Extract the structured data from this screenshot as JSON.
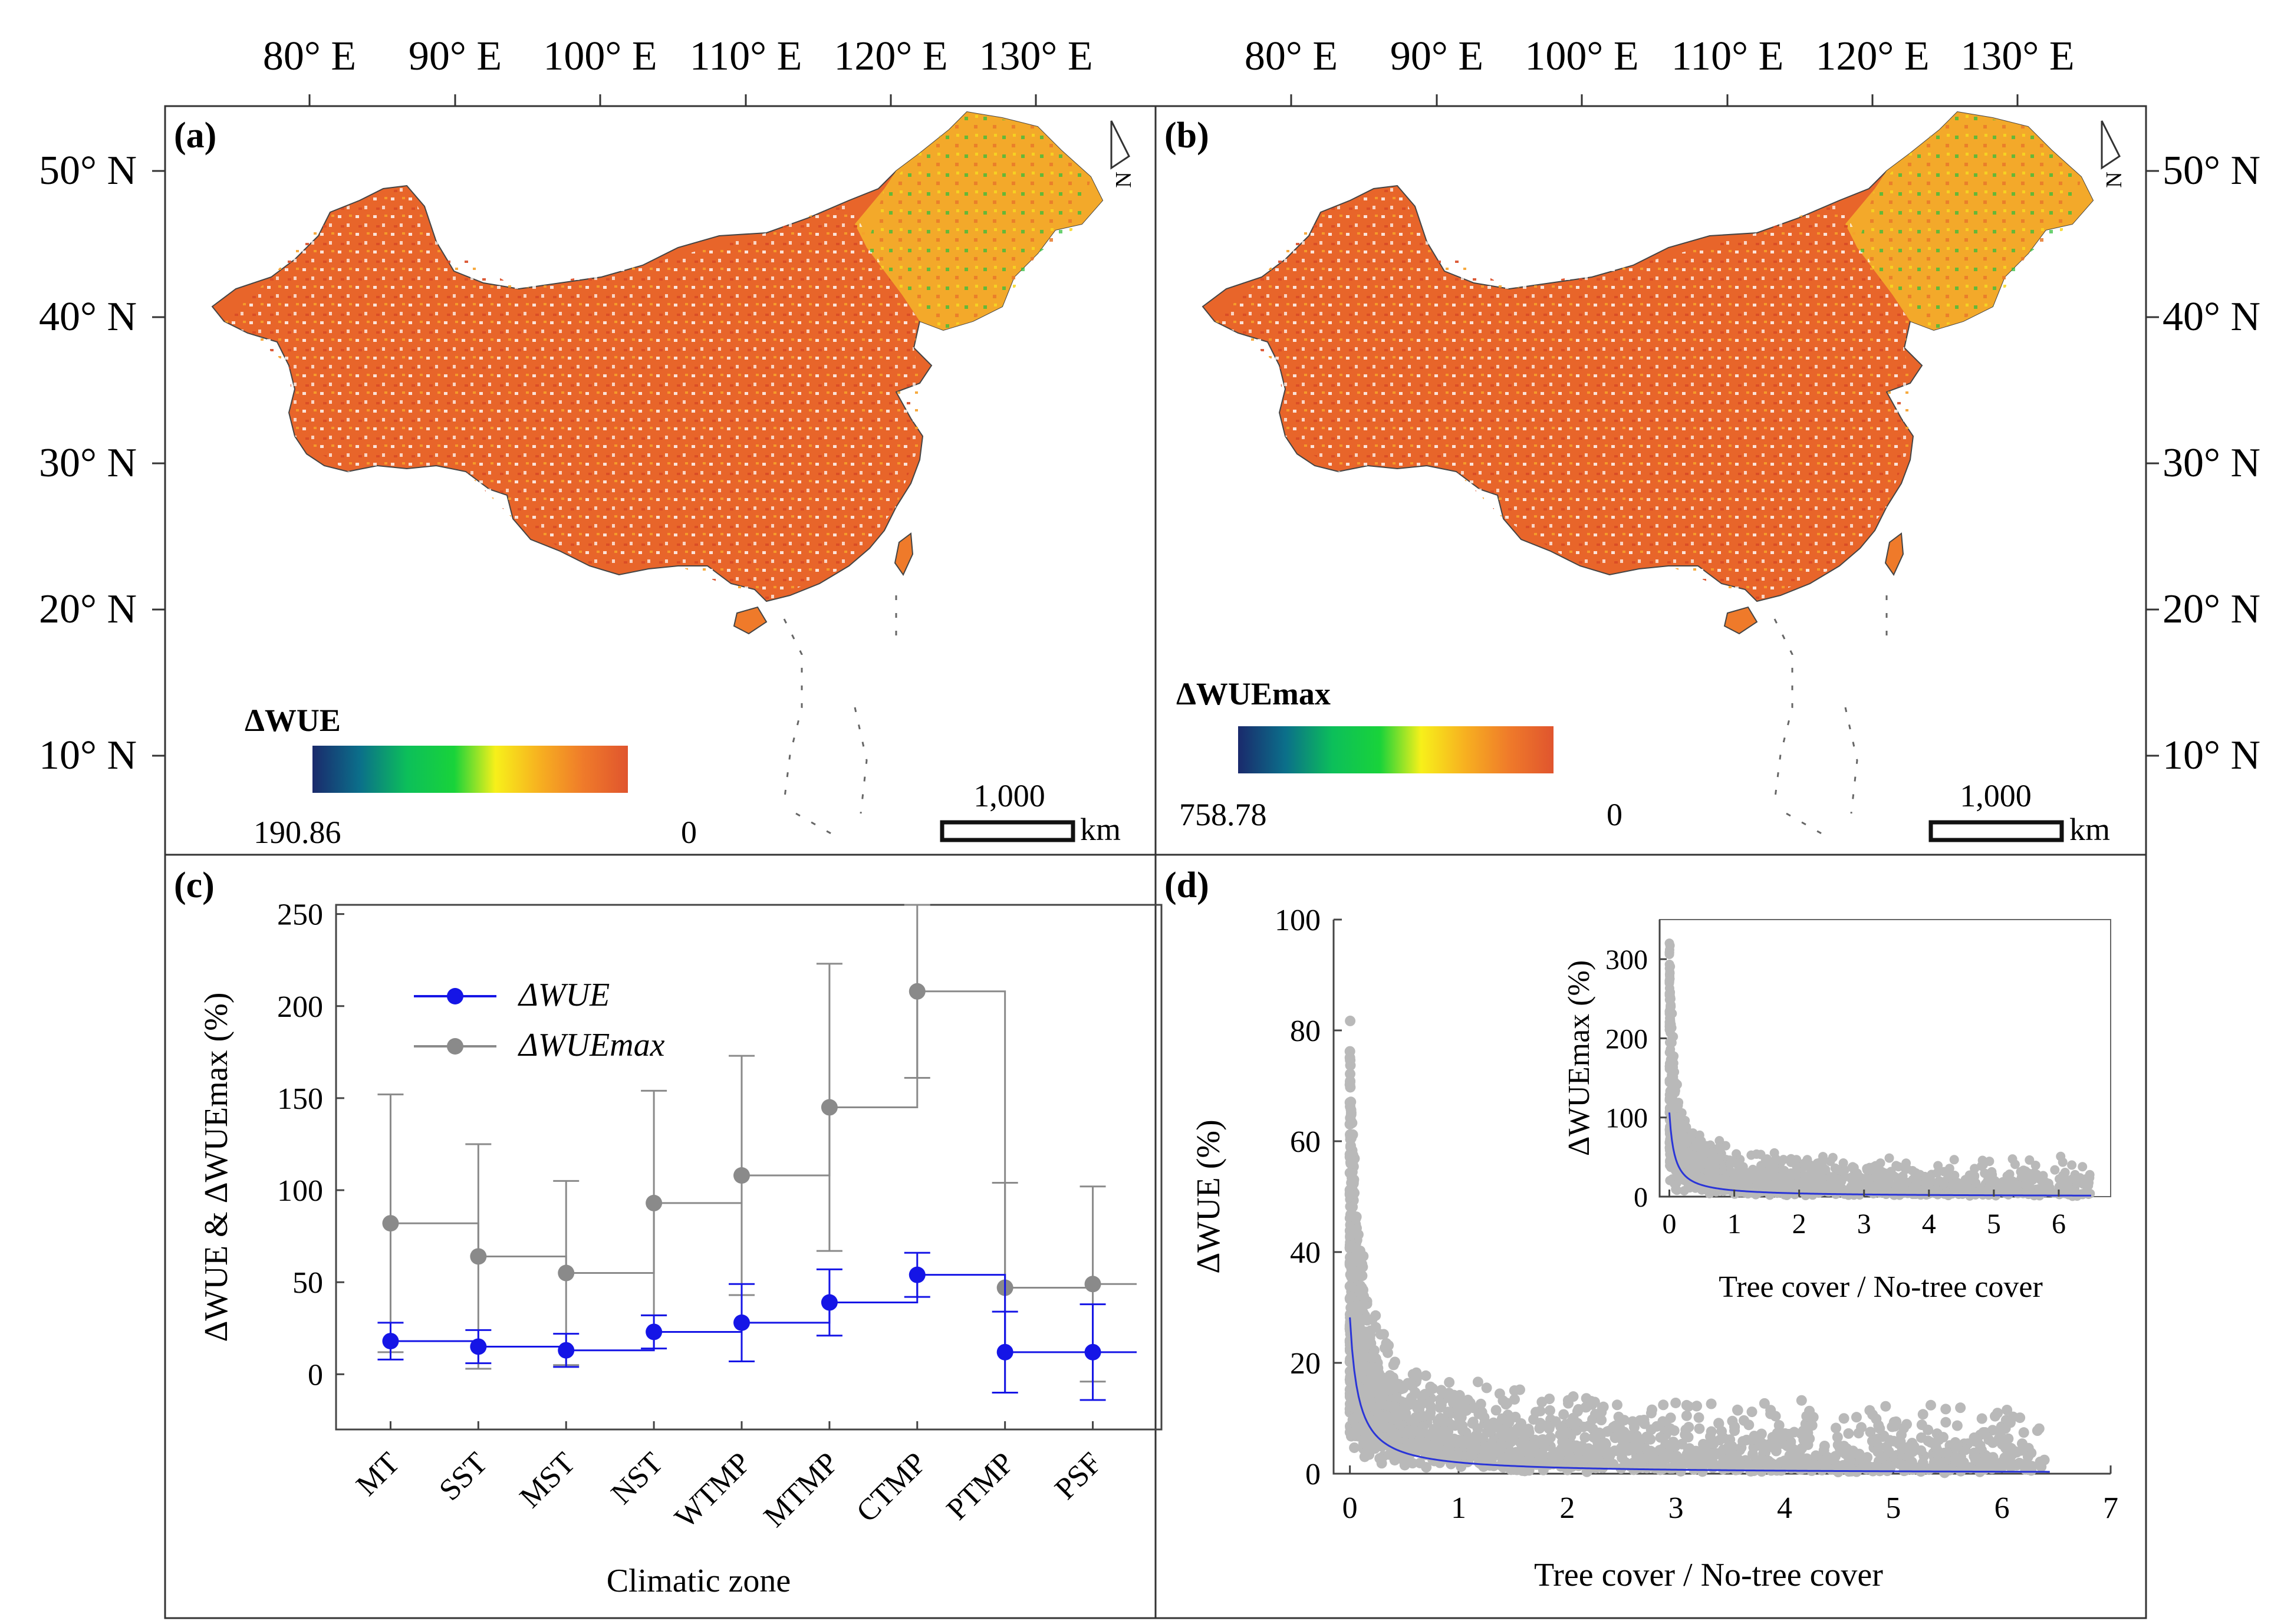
{
  "panels": {
    "a": {
      "label": "(a)",
      "legend_title": "ΔWUE",
      "legend_min": "190.86",
      "legend_max": "0",
      "scale_value": "1,000",
      "scale_unit": "km"
    },
    "b": {
      "label": "(b)",
      "legend_title": "ΔWUEmax",
      "legend_min": "758.78",
      "legend_max": "0",
      "scale_value": "1,000",
      "scale_unit": "km"
    },
    "c": {
      "label": "(c)"
    },
    "d": {
      "label": "(d)"
    }
  },
  "map_axes": {
    "lon_labels": [
      "80° E",
      "90° E",
      "100° E",
      "110° E",
      "120° E",
      "130° E"
    ],
    "lat_labels": [
      "50° N",
      "40° N",
      "30° N",
      "20° N",
      "10° N"
    ],
    "north_label": "N"
  },
  "colors": {
    "ramp": [
      "#1a2a6c",
      "#0b6f8a",
      "#0cbf5a",
      "#19d33a",
      "#f7f01a",
      "#f7b020",
      "#ef7a2a",
      "#e0552e"
    ],
    "land_main": "#e8652a",
    "land_north": "#f3a92a",
    "delta_wue": "#1515e6",
    "delta_wuemax": "#8a8a8a",
    "scatter": "#b9b9b9",
    "fit": "#2a35d8"
  },
  "chart_data": [
    {
      "type": "step-errorbar",
      "panel": "c",
      "categories": [
        "MT",
        "SST",
        "MST",
        "NST",
        "WTMP",
        "MTMP",
        "CTMP",
        "PTMP",
        "PSF"
      ],
      "series": [
        {
          "name": "ΔWUE",
          "values": [
            18,
            15,
            13,
            23,
            28,
            39,
            54,
            12,
            12
          ],
          "err": [
            10,
            9,
            9,
            9,
            21,
            18,
            12,
            22,
            26
          ]
        },
        {
          "name": "ΔWUEmax",
          "values": [
            82,
            64,
            55,
            93,
            108,
            145,
            208,
            47,
            49
          ],
          "err": [
            70,
            61,
            50,
            61,
            65,
            78,
            47,
            57,
            53
          ]
        }
      ],
      "xlabel": "Climatic zone",
      "ylabel": "ΔWUE & ΔWUEmax (%)",
      "ylim": [
        -30,
        255
      ],
      "yticks": [
        0,
        50,
        100,
        150,
        200,
        250
      ],
      "legend": [
        "ΔWUE",
        "ΔWUEmax"
      ]
    },
    {
      "type": "scatter",
      "panel": "d",
      "xlabel": "Tree cover / No-tree cover",
      "ylabel": "ΔWUE (%)",
      "xlim": [
        -0.15,
        7
      ],
      "ylim": [
        0,
        100
      ],
      "xticks": [
        0,
        1,
        2,
        3,
        4,
        5,
        6,
        7
      ],
      "yticks": [
        0,
        20,
        40,
        60,
        80,
        100
      ],
      "fit": "y = 2.2 / (x + 0.078)",
      "inset": {
        "xlabel": "Tree cover / No-tree cover",
        "ylabel": "ΔWUEmax (%)",
        "xlim": [
          -0.15,
          6.8
        ],
        "ylim": [
          0,
          350
        ],
        "xticks": [
          0,
          1,
          2,
          3,
          4,
          5,
          6
        ],
        "yticks": [
          0,
          100,
          200,
          300
        ],
        "fit": "y = 8.5 / (x + 0.08)"
      }
    }
  ]
}
